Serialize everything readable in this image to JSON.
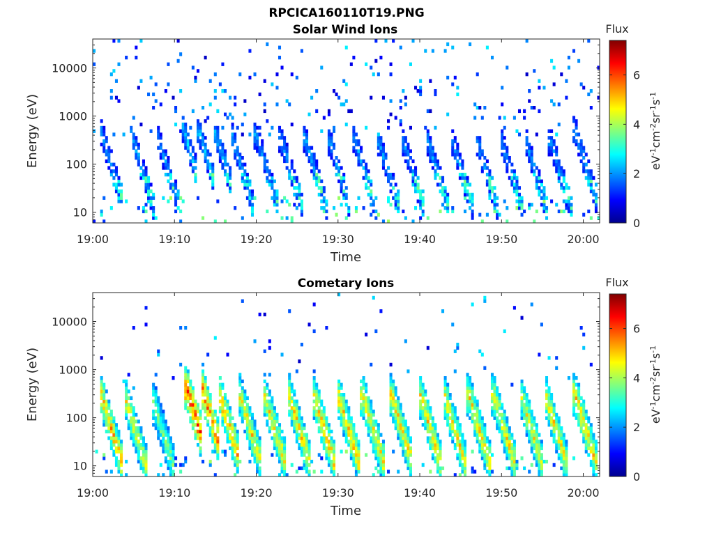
{
  "figure_title": "RPCICA160110T19.PNG",
  "chart_data": [
    {
      "type": "heatmap",
      "title": "Solar Wind Ions",
      "xlabel": "Time",
      "ylabel": "Energy (eV)",
      "x_ticks": [
        "19:00",
        "19:10",
        "19:20",
        "19:30",
        "19:40",
        "19:50",
        "20:00"
      ],
      "x_range": [
        "19:00",
        "20:02"
      ],
      "y_scale": "log",
      "y_ticks": [
        10,
        100,
        1000,
        10000
      ],
      "y_range": [
        6,
        40000
      ],
      "colorbar": {
        "title": "Flux",
        "label": "eV-1cm-2sr-1s-1",
        "ticks": [
          0,
          2,
          4,
          6
        ],
        "range": [
          0,
          7.4
        ],
        "colormap": "jet"
      },
      "bursts": [
        {
          "t": 1,
          "e": 500,
          "f": 2.2
        },
        {
          "t": 5,
          "e": 300,
          "f": 2.3
        },
        {
          "t": 8,
          "e": 350,
          "f": 2.2
        },
        {
          "t": 11,
          "e": 600,
          "f": 2.6
        },
        {
          "t": 13,
          "e": 500,
          "f": 2.5
        },
        {
          "t": 15,
          "e": 450,
          "f": 2.5
        },
        {
          "t": 17,
          "e": 400,
          "f": 2.4
        },
        {
          "t": 20,
          "e": 400,
          "f": 2.2
        },
        {
          "t": 23,
          "e": 350,
          "f": 2.2
        },
        {
          "t": 26,
          "e": 350,
          "f": 2.3
        },
        {
          "t": 29,
          "e": 300,
          "f": 2.3
        },
        {
          "t": 32,
          "e": 350,
          "f": 2.3
        },
        {
          "t": 35,
          "e": 300,
          "f": 2.3
        },
        {
          "t": 38,
          "e": 300,
          "f": 2.2
        },
        {
          "t": 41,
          "e": 300,
          "f": 2.3
        },
        {
          "t": 44,
          "e": 300,
          "f": 2.3
        },
        {
          "t": 47,
          "e": 300,
          "f": 2.2
        },
        {
          "t": 50,
          "e": 300,
          "f": 2.2
        },
        {
          "t": 53,
          "e": 300,
          "f": 2.2
        },
        {
          "t": 56,
          "e": 300,
          "f": 2.2
        },
        {
          "t": 59,
          "e": 500,
          "f": 2.3
        }
      ]
    },
    {
      "type": "heatmap",
      "title": "Cometary Ions",
      "xlabel": "Time",
      "ylabel": "Energy (eV)",
      "x_ticks": [
        "19:00",
        "19:10",
        "19:20",
        "19:30",
        "19:40",
        "19:50",
        "20:00"
      ],
      "x_range": [
        "19:00",
        "20:02"
      ],
      "y_scale": "log",
      "y_ticks": [
        10,
        100,
        1000,
        10000
      ],
      "y_range": [
        6,
        40000
      ],
      "colorbar": {
        "title": "Flux",
        "label": "eV-1cm-2sr-1s-1",
        "ticks": [
          0,
          2,
          4,
          6
        ],
        "range": [
          0,
          7.4
        ],
        "colormap": "jet"
      },
      "bursts": [
        {
          "t": 1,
          "e": 300,
          "f": 5.4
        },
        {
          "t": 4,
          "e": 250,
          "f": 4.8
        },
        {
          "t": 7.5,
          "e": 200,
          "f": 4.0
        },
        {
          "t": 11.5,
          "e": 400,
          "f": 6.4
        },
        {
          "t": 13.5,
          "e": 350,
          "f": 6.0
        },
        {
          "t": 15.5,
          "e": 300,
          "f": 5.6
        },
        {
          "t": 18,
          "e": 300,
          "f": 5.0
        },
        {
          "t": 21,
          "e": 300,
          "f": 5.0
        },
        {
          "t": 24,
          "e": 300,
          "f": 5.2
        },
        {
          "t": 27,
          "e": 300,
          "f": 5.3
        },
        {
          "t": 30,
          "e": 300,
          "f": 5.3
        },
        {
          "t": 33,
          "e": 300,
          "f": 5.1
        },
        {
          "t": 36.5,
          "e": 300,
          "f": 5.2
        },
        {
          "t": 40,
          "e": 300,
          "f": 5.1
        },
        {
          "t": 43,
          "e": 300,
          "f": 5.0
        },
        {
          "t": 46,
          "e": 300,
          "f": 5.1
        },
        {
          "t": 49,
          "e": 300,
          "f": 5.0
        },
        {
          "t": 52.5,
          "e": 250,
          "f": 4.8
        },
        {
          "t": 55.5,
          "e": 250,
          "f": 5.0
        },
        {
          "t": 59,
          "e": 300,
          "f": 5.2
        }
      ]
    }
  ]
}
